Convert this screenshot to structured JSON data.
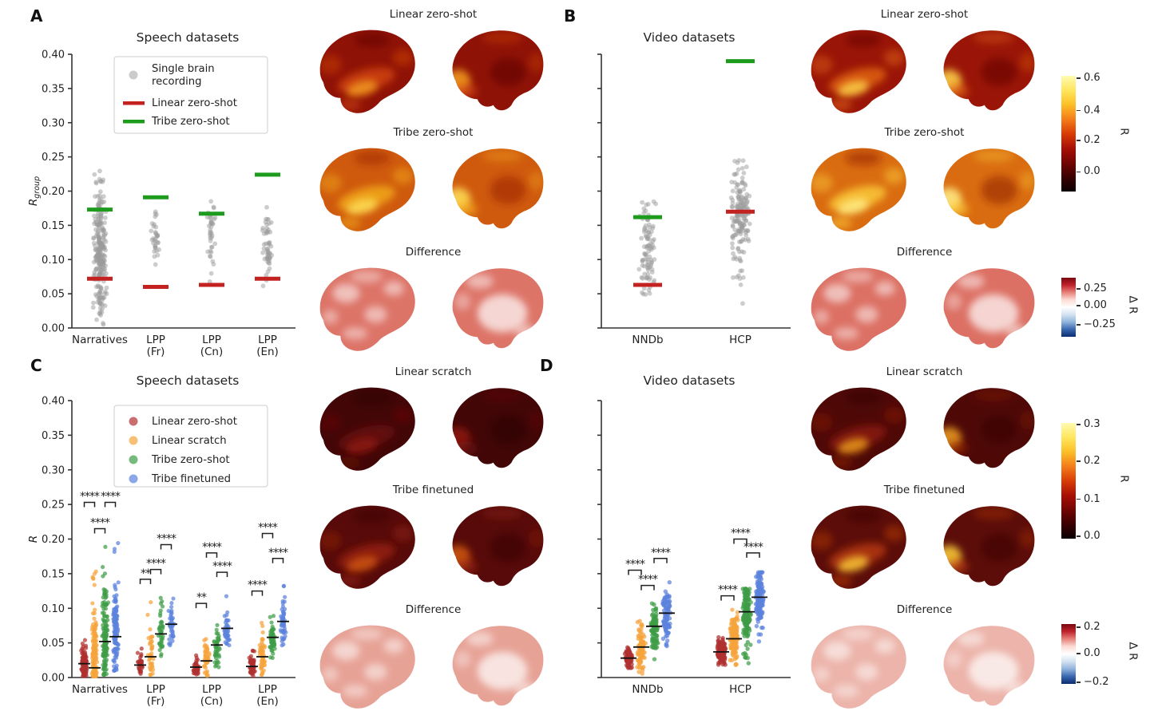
{
  "panels": [
    {
      "letter": "A"
    },
    {
      "letter": "B"
    },
    {
      "letter": "C"
    },
    {
      "letter": "D"
    }
  ],
  "chart_data": [
    {
      "id": "A",
      "type": "strip",
      "title": "Speech datasets",
      "ylabel": "R_group",
      "ylim": [
        0,
        0.4
      ],
      "ytick_step": 0.05,
      "show_ytick_labels": true,
      "categories": [
        "Narratives",
        "LPP\n(Fr)",
        "LPP\n(Cn)",
        "LPP\n(En)"
      ],
      "legend": [
        {
          "label": "Single brain\nrecording",
          "marker": "dot",
          "color": "#b5b5b5"
        },
        {
          "label": "Linear zero-shot",
          "marker": "line",
          "color": "#c42121"
        },
        {
          "label": "Tribe zero-shot",
          "marker": "line",
          "color": "#1d9b1d"
        }
      ],
      "series": [
        {
          "name": "Single brain recording",
          "color": "#9b9b9b",
          "clouds": [
            [
              0.005,
              0.245,
              0.105,
              260
            ],
            [
              0.075,
              0.17,
              0.13,
              34
            ],
            [
              0.055,
              0.185,
              0.138,
              40
            ],
            [
              0.04,
              0.195,
              0.12,
              55
            ]
          ]
        }
      ],
      "overlays": [
        {
          "name": "Linear zero-shot",
          "color": "#c42121",
          "values": [
            0.072,
            0.06,
            0.063,
            0.072
          ]
        },
        {
          "name": "Tribe zero-shot",
          "color": "#1d9b1d",
          "values": [
            0.173,
            0.191,
            0.167,
            0.224
          ]
        }
      ]
    },
    {
      "id": "B",
      "type": "strip",
      "title": "Video datasets",
      "ylabel": "",
      "ylim": [
        0,
        0.4
      ],
      "ytick_step": 0.05,
      "show_ytick_labels": false,
      "categories": [
        "NNDb",
        "HCP"
      ],
      "series": [
        {
          "name": "Single brain recording",
          "color": "#9b9b9b",
          "clouds": [
            [
              0.045,
              0.215,
              0.115,
              95
            ],
            [
              0.035,
              0.245,
              0.165,
              170
            ]
          ]
        }
      ],
      "overlays": [
        {
          "name": "Linear zero-shot",
          "color": "#c42121",
          "values": [
            0.063,
            0.17
          ]
        },
        {
          "name": "Tribe zero-shot",
          "color": "#1d9b1d",
          "values": [
            0.162,
            0.39
          ]
        }
      ]
    },
    {
      "id": "C",
      "type": "strip-grouped",
      "title": "Speech datasets",
      "ylabel": "R",
      "ylim": [
        0,
        0.4
      ],
      "ytick_step": 0.05,
      "show_ytick_labels": true,
      "categories": [
        "Narratives",
        "LPP\n(Fr)",
        "LPP\n(Cn)",
        "LPP\n(En)"
      ],
      "legend": [
        {
          "label": "Linear zero-shot",
          "marker": "dot",
          "color": "#b03030"
        },
        {
          "label": "Linear scratch",
          "marker": "dot",
          "color": "#f5a43c"
        },
        {
          "label": "Tribe zero-shot",
          "marker": "dot",
          "color": "#3e9c46"
        },
        {
          "label": "Tribe finetuned",
          "marker": "dot",
          "color": "#5b82dd"
        }
      ],
      "series": [
        {
          "name": "Linear zero-shot",
          "color": "#b03030",
          "clouds": [
            [
              0.002,
              0.055,
              0.02,
              130
            ],
            [
              0.004,
              0.045,
              0.018,
              38
            ],
            [
              0.003,
              0.035,
              0.014,
              42
            ],
            [
              0.002,
              0.042,
              0.016,
              52
            ]
          ],
          "medians": [
            0.02,
            0.018,
            0.015,
            0.016
          ]
        },
        {
          "name": "Linear scratch",
          "color": "#f5a43c",
          "clouds": [
            [
              0.002,
              0.155,
              0.03,
              130
            ],
            [
              0.004,
              0.115,
              0.032,
              38
            ],
            [
              0.002,
              0.072,
              0.024,
              42
            ],
            [
              0.004,
              0.09,
              0.03,
              52
            ]
          ],
          "medians": [
            0.014,
            0.03,
            0.024,
            0.03
          ]
        },
        {
          "name": "Tribe zero-shot",
          "color": "#3e9c46",
          "clouds": [
            [
              0.004,
              0.19,
              0.055,
              130
            ],
            [
              0.03,
              0.115,
              0.064,
              38
            ],
            [
              0.015,
              0.115,
              0.047,
              42
            ],
            [
              0.02,
              0.1,
              0.057,
              52
            ]
          ],
          "medians": [
            0.052,
            0.063,
            0.047,
            0.058
          ]
        },
        {
          "name": "Tribe finetuned",
          "color": "#5b82dd",
          "clouds": [
            [
              0.01,
              0.195,
              0.062,
              130
            ],
            [
              0.04,
              0.125,
              0.077,
              38
            ],
            [
              0.035,
              0.12,
              0.071,
              42
            ],
            [
              0.025,
              0.14,
              0.08,
              52
            ]
          ],
          "medians": [
            0.059,
            0.077,
            0.071,
            0.081
          ]
        }
      ],
      "significance": [
        [
          0,
          0,
          1,
          0.253,
          "****"
        ],
        [
          0,
          2,
          3,
          0.253,
          "****"
        ],
        [
          0,
          1,
          2,
          0.215,
          "****"
        ],
        [
          1,
          0,
          1,
          0.142,
          "**"
        ],
        [
          1,
          1,
          2,
          0.156,
          "****"
        ],
        [
          1,
          2,
          3,
          0.192,
          "****"
        ],
        [
          2,
          0,
          1,
          0.107,
          "**"
        ],
        [
          2,
          1,
          2,
          0.18,
          "****"
        ],
        [
          2,
          2,
          3,
          0.152,
          "****"
        ],
        [
          3,
          0,
          1,
          0.125,
          "****"
        ],
        [
          3,
          1,
          2,
          0.208,
          "****"
        ],
        [
          3,
          2,
          3,
          0.172,
          "****"
        ]
      ]
    },
    {
      "id": "D",
      "type": "strip-grouped",
      "title": "Video datasets",
      "ylabel": "",
      "ylim": [
        0,
        0.4
      ],
      "ytick_step": 0.05,
      "show_ytick_labels": false,
      "categories": [
        "NNDb",
        "HCP"
      ],
      "series": [
        {
          "name": "Linear zero-shot",
          "color": "#b03030",
          "clouds": [
            [
              0.01,
              0.048,
              0.028,
              90
            ],
            [
              0.014,
              0.06,
              0.037,
              150
            ]
          ],
          "medians": [
            0.028,
            0.037
          ]
        },
        {
          "name": "Linear scratch",
          "color": "#f5a43c",
          "clouds": [
            [
              0.0,
              0.088,
              0.044,
              90
            ],
            [
              0.018,
              0.098,
              0.056,
              150
            ]
          ],
          "medians": [
            0.044,
            0.056
          ]
        },
        {
          "name": "Tribe zero-shot",
          "color": "#3e9c46",
          "clouds": [
            [
              0.024,
              0.108,
              0.074,
              90
            ],
            [
              0.02,
              0.128,
              0.094,
              150
            ]
          ],
          "medians": [
            0.074,
            0.095
          ]
        },
        {
          "name": "Tribe finetuned",
          "color": "#5b82dd",
          "clouds": [
            [
              0.03,
              0.138,
              0.093,
              90
            ],
            [
              0.052,
              0.152,
              0.115,
              150
            ]
          ],
          "medians": [
            0.093,
            0.116
          ]
        }
      ],
      "significance": [
        [
          0,
          0,
          1,
          0.155,
          "****"
        ],
        [
          0,
          1,
          2,
          0.133,
          "****"
        ],
        [
          0,
          2,
          3,
          0.172,
          "****"
        ],
        [
          1,
          0,
          1,
          0.118,
          "****"
        ],
        [
          1,
          1,
          2,
          0.2,
          "****"
        ],
        [
          1,
          2,
          3,
          0.18,
          "****"
        ]
      ]
    }
  ],
  "brain_columns": [
    {
      "panel": "A",
      "rows": [
        {
          "title": "Linear zero-shot",
          "style": "hot",
          "base": "#8f1206",
          "hot": "#d84b0e",
          "hot2": "#f5a01e",
          "dark": "#5c0a04"
        },
        {
          "title": "Tribe zero-shot",
          "style": "hot",
          "base": "#cf5a0e",
          "hot": "#f6b31c",
          "hot2": "#ffe25a",
          "dark": "#992008"
        },
        {
          "title": "Difference",
          "style": "diff",
          "base": "#dd7468",
          "hot": "#ffffff",
          "hot2": "#ffffff",
          "dark": "#c44d44"
        }
      ]
    },
    {
      "panel": "B",
      "rows": [
        {
          "title": "Linear zero-shot",
          "style": "hot",
          "base": "#9a1507",
          "hot": "#e86b12",
          "hot2": "#ffd84a",
          "dark": "#600b04"
        },
        {
          "title": "Tribe zero-shot",
          "style": "hot",
          "base": "#d96c10",
          "hot": "#ffd43c",
          "hot2": "#fff08a",
          "dark": "#8f1c08"
        },
        {
          "title": "Difference",
          "style": "diff",
          "base": "#dc7064",
          "hot": "#ffffff",
          "hot2": "#ffffff",
          "dark": "#c44d44"
        }
      ]
    },
    {
      "panel": "C",
      "rows": [
        {
          "title": "Linear scratch",
          "style": "hot",
          "base": "#420607",
          "hot": "#6e0e0c",
          "hot2": "#8f1a10",
          "dark": "#2c0304"
        },
        {
          "title": "Tribe finetuned",
          "style": "hot",
          "base": "#570a09",
          "hot": "#9c2410",
          "hot2": "#d2590f",
          "dark": "#360505"
        },
        {
          "title": "Difference",
          "style": "diff",
          "base": "#e7a296",
          "hot": "#ffffff",
          "hot2": "#ffffff",
          "dark": "#d07a6c"
        }
      ]
    },
    {
      "panel": "D",
      "rows": [
        {
          "title": "Linear scratch",
          "style": "hot",
          "base": "#4e0907",
          "hot": "#901d0a",
          "hot2": "#f0a01c",
          "dark": "#330504"
        },
        {
          "title": "Tribe finetuned",
          "style": "hot",
          "base": "#5c0d09",
          "hot": "#c03d0c",
          "hot2": "#ffd23a",
          "dark": "#380605"
        },
        {
          "title": "Difference",
          "style": "diff",
          "base": "#ecb4aa",
          "hot": "#ffffff",
          "hot2": "#ffffff",
          "dark": "#d8867a"
        }
      ]
    }
  ],
  "colorbars": [
    {
      "label": "R",
      "scheme": "hot",
      "ticks": [
        "0.6",
        "0.4",
        "0.2",
        "0.0"
      ]
    },
    {
      "label": "Δ R",
      "scheme": "rdbu",
      "ticks": [
        "0.25",
        "0.00",
        "−0.25"
      ]
    },
    {
      "label": "R",
      "scheme": "hot",
      "ticks": [
        "0.3",
        "0.2",
        "0.1",
        "0.0"
      ]
    },
    {
      "label": "Δ R",
      "scheme": "rdbu",
      "ticks": [
        "0.2",
        "0.0",
        "−0.2"
      ]
    }
  ],
  "gradients": {
    "hot": [
      "#fffbb0",
      "#ffe65e",
      "#fcbf26",
      "#f37d19",
      "#d93d06",
      "#a81005",
      "#720603",
      "#3a0001",
      "#0a0003"
    ],
    "rdbu": [
      "#7a0610",
      "#c0232c",
      "#e7827a",
      "#fddbd3",
      "#ffffff",
      "#d4e2f2",
      "#90b4dd",
      "#3a67b0",
      "#0a2d6e"
    ]
  }
}
